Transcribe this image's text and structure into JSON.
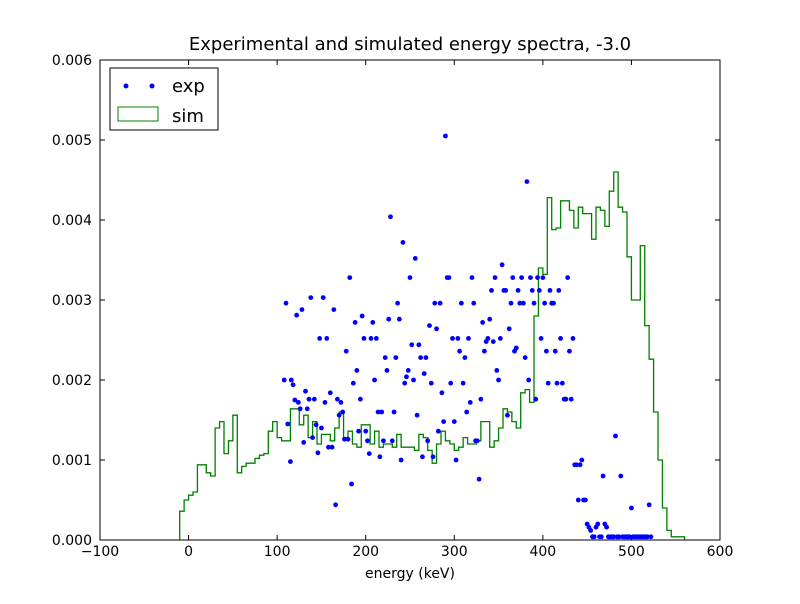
{
  "chart_data": {
    "type": "scatter",
    "title": "Experimental and simulated energy spectra, -3.0",
    "xlabel": "energy (keV)",
    "ylabel": "",
    "xlim": [
      -100,
      600
    ],
    "ylim": [
      0,
      0.006
    ],
    "xticks": [
      -100,
      0,
      100,
      200,
      300,
      400,
      500,
      600
    ],
    "xtick_labels": [
      "−100",
      "0",
      "100",
      "200",
      "300",
      "400",
      "500",
      "600"
    ],
    "yticks": [
      0,
      0.001,
      0.002,
      0.003,
      0.004,
      0.005,
      0.006
    ],
    "ytick_labels": [
      "0.000",
      "0.001",
      "0.002",
      "0.003",
      "0.004",
      "0.005",
      "0.006"
    ],
    "grid": false,
    "legend_position": "top-left",
    "series": [
      {
        "name": "exp",
        "kind": "points",
        "color": "#0000ff",
        "points": [
          [
            108,
            0.002
          ],
          [
            110,
            0.00296
          ],
          [
            112,
            0.00145
          ],
          [
            115,
            0.00098
          ],
          [
            116,
            0.002
          ],
          [
            118,
            0.00194
          ],
          [
            120,
            0.00175
          ],
          [
            122,
            0.00281
          ],
          [
            124,
            0.00172
          ],
          [
            126,
            0.00164
          ],
          [
            128,
            0.00288
          ],
          [
            130,
            0.00122
          ],
          [
            132,
            0.00186
          ],
          [
            134,
            0.00164
          ],
          [
            136,
            0.00176
          ],
          [
            138,
            0.00303
          ],
          [
            140,
            0.00128
          ],
          [
            142,
            0.00176
          ],
          [
            144,
            0.00144
          ],
          [
            146,
            0.00109
          ],
          [
            148,
            0.00252
          ],
          [
            150,
            0.0014
          ],
          [
            152,
            0.00303
          ],
          [
            154,
            0.00172
          ],
          [
            156,
            0.00252
          ],
          [
            158,
            0.00116
          ],
          [
            160,
            0.00184
          ],
          [
            162,
            0.00116
          ],
          [
            164,
            0.00288
          ],
          [
            166,
            0.00044
          ],
          [
            168,
            0.00176
          ],
          [
            170,
            0.00156
          ],
          [
            172,
            0.00172
          ],
          [
            174,
            0.0016
          ],
          [
            176,
            0.00126
          ],
          [
            178,
            0.00236
          ],
          [
            180,
            0.00126
          ],
          [
            182,
            0.00328
          ],
          [
            184,
            0.0007
          ],
          [
            186,
            0.00196
          ],
          [
            188,
            0.00272
          ],
          [
            190,
            0.00212
          ],
          [
            192,
            0.00136
          ],
          [
            194,
            0.00176
          ],
          [
            196,
            0.0028
          ],
          [
            198,
            0.00252
          ],
          [
            200,
            0.00136
          ],
          [
            202,
            0.00124
          ],
          [
            204,
            0.00108
          ],
          [
            206,
            0.00252
          ],
          [
            208,
            0.00272
          ],
          [
            210,
            0.002
          ],
          [
            212,
            0.00252
          ],
          [
            214,
            0.0016
          ],
          [
            216,
            0.00104
          ],
          [
            218,
            0.0016
          ],
          [
            220,
            0.00124
          ],
          [
            222,
            0.00228
          ],
          [
            224,
            0.00212
          ],
          [
            226,
            0.00276
          ],
          [
            228,
            0.00404
          ],
          [
            230,
            0.00124
          ],
          [
            232,
            0.0016
          ],
          [
            234,
            0.00228
          ],
          [
            236,
            0.00296
          ],
          [
            238,
            0.00276
          ],
          [
            240,
            0.001
          ],
          [
            242,
            0.00372
          ],
          [
            244,
            0.00196
          ],
          [
            246,
            0.00204
          ],
          [
            248,
            0.00212
          ],
          [
            250,
            0.00328
          ],
          [
            252,
            0.00244
          ],
          [
            254,
            0.002
          ],
          [
            256,
            0.00352
          ],
          [
            258,
            0.00156
          ],
          [
            260,
            0.00244
          ],
          [
            262,
            0.00228
          ],
          [
            264,
            0.00104
          ],
          [
            266,
            0.00208
          ],
          [
            268,
            0.00228
          ],
          [
            270,
            0.00124
          ],
          [
            272,
            0.00268
          ],
          [
            274,
            0.00196
          ],
          [
            276,
            0.00104
          ],
          [
            278,
            0.00296
          ],
          [
            280,
            0.00264
          ],
          [
            282,
            0.00136
          ],
          [
            284,
            0.00296
          ],
          [
            286,
            0.00184
          ],
          [
            288,
            0.00148
          ],
          [
            290,
            0.00505
          ],
          [
            292,
            0.00328
          ],
          [
            294,
            0.00328
          ],
          [
            296,
            0.00196
          ],
          [
            298,
            0.00252
          ],
          [
            300,
            0.00148
          ],
          [
            302,
            0.001
          ],
          [
            304,
            0.00252
          ],
          [
            306,
            0.00236
          ],
          [
            308,
            0.00296
          ],
          [
            310,
            0.00196
          ],
          [
            312,
            0.00228
          ],
          [
            314,
            0.0016
          ],
          [
            316,
            0.00252
          ],
          [
            318,
            0.00172
          ],
          [
            320,
            0.00328
          ],
          [
            322,
            0.00296
          ],
          [
            324,
            0.00124
          ],
          [
            326,
            0.00124
          ],
          [
            328,
            0.00076
          ],
          [
            330,
            0.00176
          ],
          [
            332,
            0.00272
          ],
          [
            334,
            0.00236
          ],
          [
            336,
            0.00248
          ],
          [
            338,
            0.00252
          ],
          [
            340,
            0.00276
          ],
          [
            342,
            0.00312
          ],
          [
            344,
            0.00248
          ],
          [
            346,
            0.00328
          ],
          [
            348,
            0.00212
          ],
          [
            350,
            0.002
          ],
          [
            352,
            0.00252
          ],
          [
            354,
            0.00344
          ],
          [
            356,
            0.00312
          ],
          [
            358,
            0.00312
          ],
          [
            360,
            0.00156
          ],
          [
            362,
            0.00264
          ],
          [
            364,
            0.00296
          ],
          [
            366,
            0.00328
          ],
          [
            368,
            0.00236
          ],
          [
            370,
            0.0024
          ],
          [
            372,
            0.00312
          ],
          [
            374,
            0.00296
          ],
          [
            376,
            0.00328
          ],
          [
            378,
            0.00296
          ],
          [
            380,
            0.00228
          ],
          [
            382,
            0.00448
          ],
          [
            384,
            0.002
          ],
          [
            386,
            0.00328
          ],
          [
            388,
            0.00312
          ],
          [
            390,
            0.00296
          ],
          [
            392,
            0.00176
          ],
          [
            394,
            0.00328
          ],
          [
            396,
            0.00312
          ],
          [
            398,
            0.00252
          ],
          [
            400,
            0.00328
          ],
          [
            402,
            0.00296
          ],
          [
            404,
            0.00236
          ],
          [
            406,
            0.00196
          ],
          [
            408,
            0.00312
          ],
          [
            410,
            0.00296
          ],
          [
            412,
            0.00296
          ],
          [
            414,
            0.00236
          ],
          [
            416,
            0.00196
          ],
          [
            418,
            0.00312
          ],
          [
            420,
            0.00252
          ],
          [
            422,
            0.00196
          ],
          [
            424,
            0.00176
          ],
          [
            426,
            0.00176
          ],
          [
            428,
            0.00328
          ],
          [
            430,
            0.00236
          ],
          [
            432,
            0.00176
          ],
          [
            434,
            0.00252
          ],
          [
            436,
            0.00094
          ],
          [
            438,
            0.00094
          ],
          [
            440,
            0.0005
          ],
          [
            442,
            0.00094
          ],
          [
            444,
            0.001
          ],
          [
            446,
            0.0005
          ],
          [
            448,
            0.0005
          ],
          [
            450,
            0.0002
          ],
          [
            452,
            0.00016
          ],
          [
            454,
            0.00012
          ],
          [
            456,
            4e-05
          ],
          [
            458,
            4e-05
          ],
          [
            460,
            0.00016
          ],
          [
            462,
            0.0002
          ],
          [
            464,
            4e-05
          ],
          [
            466,
            4e-05
          ],
          [
            468,
            0.0008
          ],
          [
            470,
            0.0002
          ],
          [
            472,
            0.00016
          ],
          [
            474,
            4e-05
          ],
          [
            476,
            4e-05
          ],
          [
            478,
            4e-05
          ],
          [
            480,
            4e-05
          ],
          [
            482,
            0.0013
          ],
          [
            484,
            4e-05
          ],
          [
            486,
            4e-05
          ],
          [
            488,
            0.0008
          ],
          [
            490,
            4e-05
          ],
          [
            492,
            4e-05
          ],
          [
            494,
            4e-05
          ],
          [
            496,
            4e-05
          ],
          [
            498,
            4e-05
          ],
          [
            500,
            0.0004
          ],
          [
            502,
            4e-05
          ],
          [
            504,
            4e-05
          ],
          [
            506,
            4e-05
          ],
          [
            508,
            4e-05
          ],
          [
            510,
            4e-05
          ],
          [
            512,
            4e-05
          ],
          [
            514,
            4e-05
          ],
          [
            516,
            4e-05
          ],
          [
            518,
            4e-05
          ],
          [
            520,
            0.00044
          ],
          [
            522,
            4e-05
          ]
        ]
      },
      {
        "name": "sim",
        "kind": "step",
        "color": "#008000",
        "bin_start": -10,
        "bin_width": 5,
        "values": [
          0.00036,
          0.0005,
          0.00056,
          0.0006,
          0.00094,
          0.00094,
          0.00084,
          0.0008,
          0.0014,
          0.00148,
          0.00108,
          0.00124,
          0.00156,
          0.00084,
          0.00092,
          0.00096,
          0.00096,
          0.00102,
          0.00106,
          0.00108,
          0.00136,
          0.00148,
          0.00128,
          0.00124,
          0.00124,
          0.00164,
          0.00164,
          0.00144,
          0.00156,
          0.00128,
          0.00148,
          0.0012,
          0.00132,
          0.00132,
          0.00124,
          0.0014,
          0.0016,
          0.00128,
          0.00136,
          0.0012,
          0.00116,
          0.00144,
          0.00144,
          0.0012,
          0.00136,
          0.00116,
          0.0012,
          0.0012,
          0.00116,
          0.00132,
          0.00116,
          0.00116,
          0.00116,
          0.00112,
          0.00132,
          0.00128,
          0.00112,
          0.00096,
          0.0012,
          0.00136,
          0.00124,
          0.0012,
          0.00112,
          0.00116,
          0.00128,
          0.0012,
          0.0012,
          0.00124,
          0.00148,
          0.00148,
          0.00116,
          0.00124,
          0.0014,
          0.00164,
          0.0016,
          0.00148,
          0.0014,
          0.00184,
          0.00188,
          0.00172,
          0.0028,
          0.0034,
          0.00332,
          0.00428,
          0.00388,
          0.0039,
          0.00424,
          0.00424,
          0.00412,
          0.0039,
          0.00416,
          0.00408,
          0.00408,
          0.00376,
          0.00416,
          0.00412,
          0.00392,
          0.00436,
          0.0046,
          0.00416,
          0.0041,
          0.00354,
          0.003,
          0.003,
          0.00368,
          0.00268,
          0.00226,
          0.0016,
          0.001,
          0.0004,
          0.00012,
          4e-05,
          4e-05,
          4e-05
        ]
      }
    ]
  }
}
